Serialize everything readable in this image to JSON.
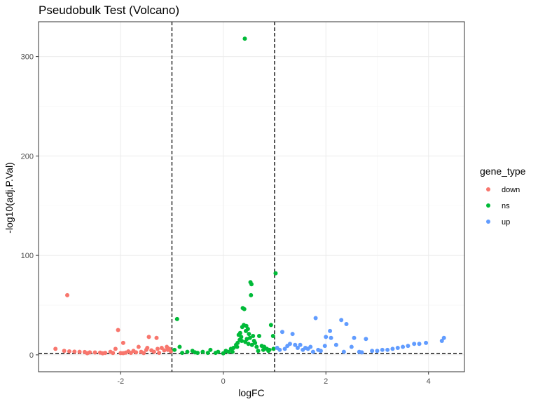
{
  "chart_data": {
    "type": "scatter",
    "title": "Pseudobulk Test (Volcano)",
    "xlabel": "logFC",
    "ylabel": "-log10(adj.P.Val)",
    "xlim": [
      -3.6,
      4.7
    ],
    "ylim": [
      -17,
      335
    ],
    "xticks": [
      -2,
      0,
      2,
      4
    ],
    "yticks": [
      0,
      100,
      200,
      300
    ],
    "grid": true,
    "legend": {
      "title": "gene_type",
      "position": "right",
      "entries": [
        {
          "name": "down",
          "color": "#F8766D"
        },
        {
          "name": "ns",
          "color": "#00BA38"
        },
        {
          "name": "up",
          "color": "#619CFF"
        }
      ]
    },
    "reference_lines": {
      "vertical": [
        -1,
        1
      ],
      "horizontal": [
        1.3
      ],
      "style": "dashed"
    },
    "series": [
      {
        "name": "down",
        "color": "#F8766D",
        "x": [
          -3.04,
          -3.27,
          -2.05,
          -1.95,
          -1.45,
          -1.3,
          -2.1,
          -1.65,
          -1.48,
          -1.2,
          -1.1,
          -1.05,
          -3.1,
          -3.0,
          -2.9,
          -2.8,
          -2.7,
          -2.6,
          -2.5,
          -2.4,
          -2.3,
          -2.2,
          -2.15,
          -2.0,
          -1.9,
          -1.85,
          -1.8,
          -1.75,
          -1.7,
          -1.6,
          -1.55,
          -1.5,
          -1.4,
          -1.35,
          -1.28,
          -1.25,
          -1.15,
          -1.08,
          -1.02,
          -2.65,
          -2.35,
          -1.95
        ],
        "y": [
          60,
          6,
          25,
          12,
          18,
          17,
          6,
          8,
          7,
          7,
          8,
          6,
          4,
          3.5,
          3.2,
          3,
          2.8,
          2.5,
          2.4,
          2.2,
          2,
          3,
          1.9,
          1.8,
          2.2,
          3.5,
          2,
          4,
          2.5,
          3,
          1.8,
          5,
          4.5,
          3,
          6,
          2,
          4.5,
          5,
          3.5,
          1.6,
          1.5,
          1.7
        ]
      },
      {
        "name": "ns",
        "color": "#00BA38",
        "x": [
          0.42,
          1.02,
          0.53,
          0.55,
          0.54,
          -0.9,
          0.38,
          0.41,
          0.4,
          0.37,
          0.45,
          0.48,
          0.93,
          0.97,
          0.3,
          0.33,
          0.35,
          0.44,
          0.5,
          0.52,
          0.58,
          0.6,
          0.62,
          0.7,
          0.75,
          0.8,
          0.25,
          0.27,
          0.28,
          0.32,
          0.36,
          0.43,
          0.46,
          0.49,
          0.56,
          0.65,
          0.85,
          0.2,
          0.15,
          -0.25,
          -0.6,
          -0.85,
          -0.4,
          0.05,
          -0.1,
          0.9,
          -0.95,
          0.1,
          -0.7,
          -0.5,
          -0.3,
          -0.15,
          0.0,
          0.18,
          0.68,
          0.78,
          0.88,
          0.98,
          -0.8,
          -0.55
        ],
        "y": [
          318,
          82,
          73,
          71,
          60,
          36,
          47,
          46,
          30,
          28,
          29,
          26,
          30,
          19,
          20,
          22,
          18,
          24,
          21,
          17,
          19,
          14,
          12,
          19,
          9,
          8,
          10,
          8,
          12,
          15,
          14,
          13,
          16,
          11,
          10,
          8,
          6,
          7,
          6,
          5,
          4,
          8,
          3,
          4,
          3,
          5,
          5,
          3,
          3,
          2,
          2,
          2,
          1.5,
          3,
          4,
          5,
          4,
          6,
          2,
          2.5
        ]
      },
      {
        "name": "up",
        "color": "#619CFF",
        "x": [
          1.8,
          2.3,
          2.4,
          2.08,
          1.15,
          1.35,
          2.0,
          2.1,
          2.55,
          2.78,
          4.3,
          4.26,
          3.95,
          3.82,
          3.72,
          3.6,
          3.5,
          3.4,
          3.3,
          3.2,
          3.1,
          3.0,
          2.9,
          1.5,
          1.6,
          1.7,
          1.2,
          1.25,
          1.3,
          1.4,
          1.45,
          1.55,
          1.65,
          1.75,
          1.85,
          1.9,
          2.2,
          2.5,
          2.65,
          1.05,
          1.1,
          1.98,
          2.35,
          2.7
        ],
        "y": [
          37,
          35,
          31,
          24,
          23,
          21,
          18,
          17,
          17,
          16,
          17,
          14,
          12,
          11,
          11,
          9,
          8,
          7,
          6,
          5,
          5,
          4,
          4,
          10,
          7,
          8,
          6,
          9,
          11,
          10,
          7,
          5,
          6,
          3,
          5,
          4,
          10,
          8,
          3,
          7,
          5,
          9,
          3,
          2.5
        ]
      }
    ]
  }
}
